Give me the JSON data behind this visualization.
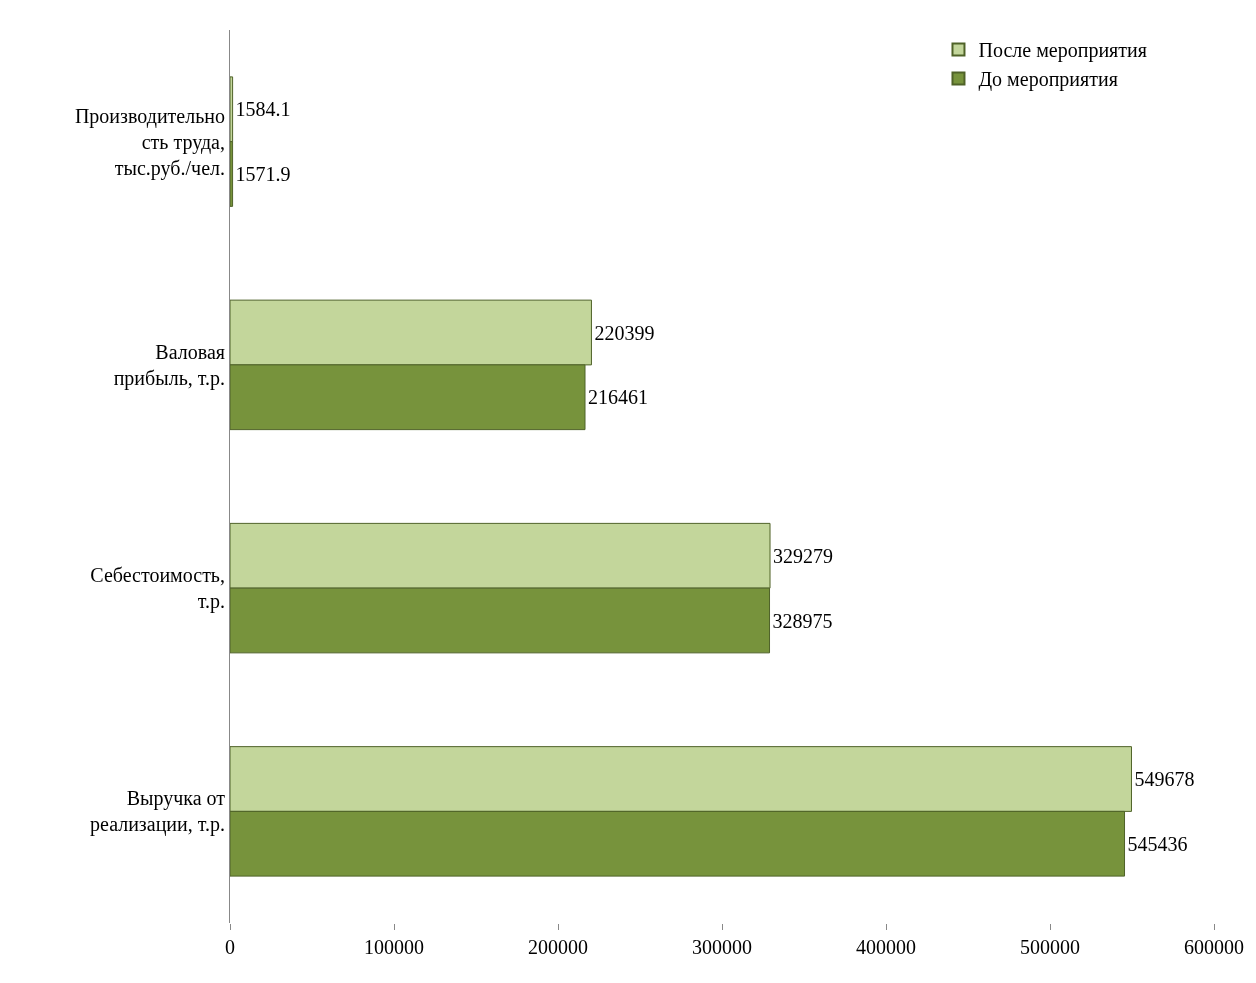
{
  "chart_data": {
    "type": "bar",
    "orientation": "horizontal",
    "categories": [
      "Производительно\nсть труда,\nтыс.руб./чел.",
      "Валовая\nприбыль, т.р.",
      "Себестоимость,\nт.р.",
      "Выручка от\nреализации, т.р."
    ],
    "series": [
      {
        "name": "После мероприятия",
        "color": "#c3d69b",
        "values": [
          1584.1,
          220399,
          329279,
          549678
        ]
      },
      {
        "name": "До мероприятия",
        "color": "#77933c",
        "values": [
          1571.9,
          216461,
          328975,
          545436
        ]
      }
    ],
    "xlim": [
      0,
      600000
    ],
    "xticks": [
      0,
      100000,
      200000,
      300000,
      400000,
      500000,
      600000
    ],
    "data_labels": true,
    "legend": "top right"
  }
}
